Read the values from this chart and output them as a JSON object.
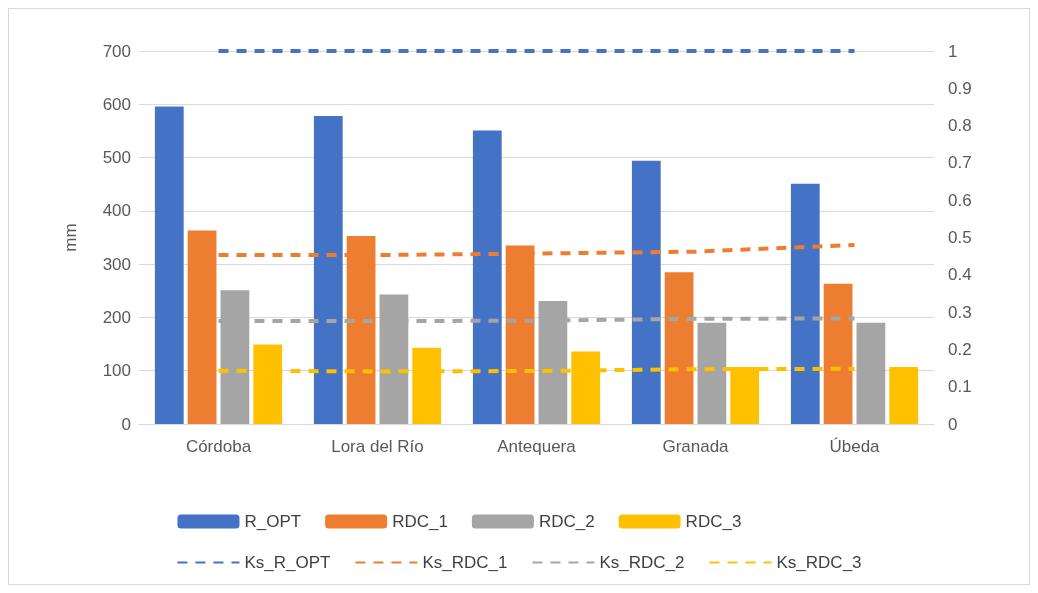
{
  "chart_data": {
    "type": "bar",
    "ylabel": "mm",
    "categories": [
      "Córdoba",
      "Lora del Río",
      "Antequera",
      "Granada",
      "Úbeda"
    ],
    "series": [
      {
        "name": "R_OPT",
        "color": "#4472c4",
        "values": [
          596,
          578,
          551,
          494,
          451
        ]
      },
      {
        "name": "RDC_1",
        "color": "#ed7d31",
        "values": [
          363,
          353,
          335,
          285,
          263
        ]
      },
      {
        "name": "RDC_2",
        "color": "#a5a5a5",
        "values": [
          251,
          243,
          231,
          190,
          190
        ]
      },
      {
        "name": "RDC_3",
        "color": "#ffc000",
        "values": [
          149,
          143,
          136,
          107,
          107
        ]
      },
      {
        "name": "Ks_R_OPT",
        "type": "line",
        "axis": "y2",
        "line_style": "dashed",
        "color": "#4472c4",
        "values": [
          1,
          1,
          1,
          1,
          1
        ]
      },
      {
        "name": "Ks_RDC_1",
        "type": "line",
        "axis": "y2",
        "line_style": "dashed",
        "color": "#ed7d31",
        "values": [
          0.453,
          0.453,
          0.457,
          0.462,
          0.48
        ]
      },
      {
        "name": "Ks_RDC_2",
        "type": "line",
        "axis": "y2",
        "line_style": "dashed",
        "color": "#a5a5a5",
        "values": [
          0.276,
          0.276,
          0.277,
          0.282,
          0.283
        ]
      },
      {
        "name": "Ks_RDC_3",
        "type": "line",
        "axis": "y2",
        "line_style": "dashed",
        "color": "#ffc000",
        "values": [
          0.143,
          0.141,
          0.142,
          0.147,
          0.148
        ]
      }
    ],
    "ylim": [
      0,
      700
    ],
    "yticks": [
      0,
      100,
      200,
      300,
      400,
      500,
      600,
      700
    ],
    "y2lim": [
      0,
      1
    ],
    "y2ticks": [
      0,
      0.1,
      0.2,
      0.3,
      0.4,
      0.5,
      0.6,
      0.7,
      0.8,
      0.9,
      1
    ],
    "grid": "y",
    "legend": "bottom",
    "marker": "none"
  }
}
